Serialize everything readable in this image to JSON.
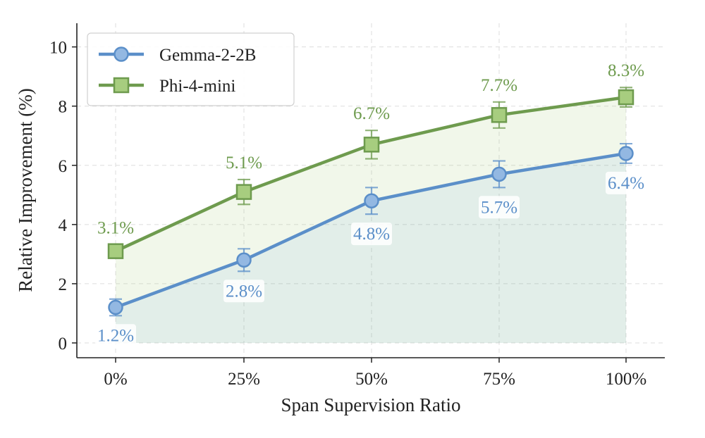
{
  "chart_data": {
    "type": "line",
    "title": "",
    "xlabel": "Span Supervision Ratio",
    "ylabel": "Relative Improvement (%)",
    "categories": [
      "0%",
      "25%",
      "50%",
      "75%",
      "100%"
    ],
    "ylim": [
      -0.5,
      10.8
    ],
    "yticks": [
      0,
      2,
      4,
      6,
      8,
      10
    ],
    "grid": true,
    "legend_position": "top-left",
    "series": [
      {
        "name": "Gemma-2-2B",
        "values": [
          1.2,
          2.8,
          4.8,
          5.7,
          6.4
        ],
        "errors": [
          0.28,
          0.38,
          0.45,
          0.45,
          0.33
        ],
        "labels": [
          "1.2%",
          "2.8%",
          "4.8%",
          "5.7%",
          "6.4%"
        ],
        "marker": "circle",
        "color": "#5b8fc9",
        "label_position": "below"
      },
      {
        "name": "Phi-4-mini",
        "values": [
          3.1,
          5.1,
          6.7,
          7.7,
          8.3
        ],
        "errors": [
          0.22,
          0.42,
          0.48,
          0.44,
          0.33
        ],
        "labels": [
          "3.1%",
          "5.1%",
          "6.7%",
          "7.7%",
          "8.3%"
        ],
        "marker": "square",
        "color": "#6e9b4e",
        "label_position": "above"
      }
    ]
  }
}
